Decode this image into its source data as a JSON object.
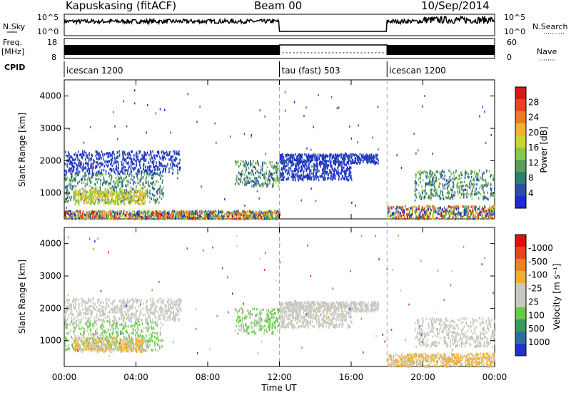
{
  "header": {
    "station": "Kapuskasing (fitACF)",
    "beam": "Beam 00",
    "date": "10/Sep/2014"
  },
  "status_panel": {
    "nsky_label": "N.Sky",
    "nsky_ticks": [
      "10^5",
      "10^0"
    ],
    "nsearch_label": "N.Search",
    "freq_label": "Freq.",
    "freq_unit": "[MHz]",
    "freq_ticks": [
      "18",
      "8"
    ],
    "nave_label": "Nave",
    "nave_ticks": [
      "60",
      "0"
    ],
    "cpid_label": "CPID",
    "cpid_segments": [
      {
        "label": "icescan 1200",
        "start_hour": 0,
        "end_hour": 12
      },
      {
        "label": "tau (fast) 503",
        "start_hour": 12,
        "end_hour": 18
      },
      {
        "label": "icescan 1200",
        "start_hour": 18,
        "end_hour": 24
      }
    ]
  },
  "xaxis": {
    "label": "Time UT",
    "ticks": [
      "00:00",
      "04:00",
      "08:00",
      "12:00",
      "16:00",
      "20:00",
      "00:00"
    ]
  },
  "chart_data": [
    {
      "type": "heatmap",
      "name": "power",
      "ylabel": "Slant Range [km]",
      "yticks": [
        1000,
        2000,
        3000,
        4000
      ],
      "ylim": [
        200,
        4500
      ],
      "xlim_hours": [
        0,
        24
      ],
      "colorbar_label": "Power [dB]",
      "colorbar_ticks": [
        "4",
        "8",
        "12",
        "16",
        "20",
        "24",
        "28"
      ],
      "colorbar_colors": [
        "#1e2bd6",
        "#2a4fa8",
        "#2e7f6e",
        "#5a9e5a",
        "#86c84a",
        "#c9d62f",
        "#f0b030",
        "#f07a20",
        "#e84420",
        "#d81818"
      ],
      "regions": [
        {
          "hours": [
            0.0,
            6.5
          ],
          "range_km": [
            1600,
            2300
          ],
          "level": "low"
        },
        {
          "hours": [
            0.0,
            5.5
          ],
          "range_km": [
            700,
            1600
          ],
          "level": "mid"
        },
        {
          "hours": [
            0.5,
            4.5
          ],
          "range_km": [
            650,
            1100
          ],
          "level": "high"
        },
        {
          "hours": [
            0.0,
            12.0
          ],
          "range_km": [
            200,
            450
          ],
          "level": "mixed"
        },
        {
          "hours": [
            9.5,
            12.0
          ],
          "range_km": [
            1200,
            2000
          ],
          "level": "mid"
        },
        {
          "hours": [
            12.0,
            17.5
          ],
          "range_km": [
            1900,
            2200
          ],
          "level": "low"
        },
        {
          "hours": [
            12.0,
            16.0
          ],
          "range_km": [
            1400,
            1900
          ],
          "level": "low"
        },
        {
          "hours": [
            19.5,
            24.0
          ],
          "range_km": [
            800,
            1700
          ],
          "level": "mid"
        },
        {
          "hours": [
            18.0,
            24.0
          ],
          "range_km": [
            200,
            600
          ],
          "level": "mixed"
        }
      ]
    },
    {
      "type": "heatmap",
      "name": "velocity",
      "ylabel": "Slant Range [km]",
      "yticks": [
        1000,
        2000,
        3000,
        4000
      ],
      "ylim": [
        200,
        4500
      ],
      "xlim_hours": [
        0,
        24
      ],
      "colorbar_label": "Velocity [m s⁻¹]",
      "colorbar_ticks": [
        "1000",
        "500",
        "100",
        "25",
        "-25",
        "-100",
        "-500",
        "-1000"
      ],
      "colorbar_colors": [
        "#2233cc",
        "#2e6e9a",
        "#3a9a5a",
        "#66cc44",
        "#c8c8c0",
        "#c8c8c0",
        "#f0b030",
        "#f08020",
        "#e84420",
        "#e01010"
      ],
      "regions": [
        {
          "hours": [
            0.0,
            6.5
          ],
          "range_km": [
            1600,
            2300
          ],
          "level": "grey"
        },
        {
          "hours": [
            0.0,
            5.5
          ],
          "range_km": [
            700,
            1600
          ],
          "level": "green"
        },
        {
          "hours": [
            0.5,
            4.5
          ],
          "range_km": [
            650,
            1100
          ],
          "level": "orange"
        },
        {
          "hours": [
            9.5,
            12.0
          ],
          "range_km": [
            1200,
            2000
          ],
          "level": "green"
        },
        {
          "hours": [
            12.0,
            17.5
          ],
          "range_km": [
            1900,
            2200
          ],
          "level": "grey"
        },
        {
          "hours": [
            12.0,
            16.0
          ],
          "range_km": [
            1400,
            1900
          ],
          "level": "grey"
        },
        {
          "hours": [
            19.5,
            24.0
          ],
          "range_km": [
            800,
            1700
          ],
          "level": "grey"
        },
        {
          "hours": [
            18.0,
            24.0
          ],
          "range_km": [
            200,
            600
          ],
          "level": "orange"
        }
      ]
    }
  ]
}
